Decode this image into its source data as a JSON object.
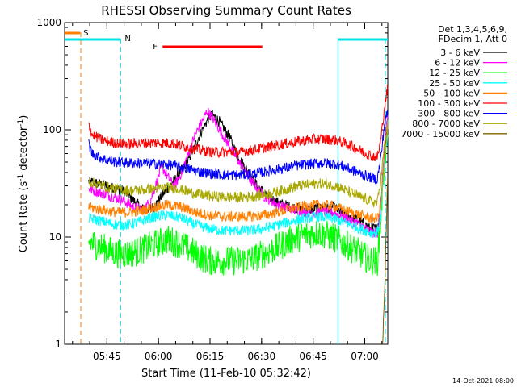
{
  "chart_data": {
    "type": "line",
    "title": "RHESSI Observing Summary Count Rates",
    "xlabel": "Start Time (11-Feb-10 05:32:42)",
    "ylabel_main": "Count Rate (s",
    "ylabel_sup1": "-1",
    "ylabel_mid": " detector",
    "ylabel_sup2": "-1",
    "ylabel_end": ")",
    "yscale": "log",
    "ylim": [
      1,
      1000
    ],
    "xlim_minutes": [
      0,
      94
    ],
    "x_ticks": [
      {
        "label": "05:45",
        "min": 12.3
      },
      {
        "label": "06:00",
        "min": 27.3
      },
      {
        "label": "06:15",
        "min": 42.3
      },
      {
        "label": "06:30",
        "min": 57.3
      },
      {
        "label": "06:45",
        "min": 72.3
      },
      {
        "label": "07:00",
        "min": 87.3
      }
    ],
    "y_ticks": [
      {
        "label": "1",
        "value": 1
      },
      {
        "label": "10",
        "value": 10
      },
      {
        "label": "100",
        "value": 100
      },
      {
        "label": "1000",
        "value": 1000
      }
    ],
    "legend_header": [
      "Det 1,3,4,5,6,9,",
      "FDecim 1, Att 0"
    ],
    "legend_position": "right",
    "markers": {
      "S_label": "S",
      "N_label": "N",
      "F_label": "F",
      "S_color": "#ff7f00",
      "N_color": "#00e0e0",
      "F_color": "#ff0000",
      "saa_window_min": [
        0,
        4.5
      ],
      "flag_line_min": [
        28.5,
        57.5
      ],
      "night_segments_min": [
        [
          0,
          16.3
        ],
        [
          79.5,
          94
        ]
      ],
      "vlines_dashed_orange_min": [
        4.7
      ],
      "vlines_dashed_cyan_min": [
        16.3,
        93.3
      ],
      "vlines_solid_cyan_min": [
        79.5
      ]
    },
    "series": [
      {
        "name": "3 - 6 keV",
        "color": "#000000",
        "points": [
          [
            7,
            33
          ],
          [
            12,
            30
          ],
          [
            17,
            27
          ],
          [
            20,
            22
          ],
          [
            23,
            18
          ],
          [
            26,
            19
          ],
          [
            29,
            26
          ],
          [
            32,
            34
          ],
          [
            34,
            42
          ],
          [
            36,
            52
          ],
          [
            38,
            72
          ],
          [
            40,
            100
          ],
          [
            42,
            130
          ],
          [
            43,
            138
          ],
          [
            45,
            120
          ],
          [
            48,
            85
          ],
          [
            50,
            60
          ],
          [
            53,
            42
          ],
          [
            56,
            30
          ],
          [
            59,
            24
          ],
          [
            62,
            21
          ],
          [
            66,
            19
          ],
          [
            70,
            18
          ],
          [
            74,
            18.5
          ],
          [
            78,
            19
          ],
          [
            82,
            16
          ],
          [
            86,
            14
          ],
          [
            89,
            12
          ],
          [
            91,
            12
          ],
          [
            92,
            20
          ],
          [
            93,
            60
          ],
          [
            94,
            120
          ]
        ]
      },
      {
        "name": "6 - 12 keV",
        "color": "#ff00ff",
        "points": [
          [
            7,
            28
          ],
          [
            12,
            25
          ],
          [
            17,
            22
          ],
          [
            20,
            19
          ],
          [
            23,
            18
          ],
          [
            25,
            22
          ],
          [
            27,
            34
          ],
          [
            28,
            44
          ],
          [
            29,
            42
          ],
          [
            30,
            36
          ],
          [
            32,
            30
          ],
          [
            34,
            40
          ],
          [
            36,
            60
          ],
          [
            38,
            90
          ],
          [
            40,
            120
          ],
          [
            41.5,
            150
          ],
          [
            43,
            130
          ],
          [
            46,
            90
          ],
          [
            50,
            55
          ],
          [
            54,
            34
          ],
          [
            58,
            24
          ],
          [
            62,
            20
          ],
          [
            66,
            18
          ],
          [
            70,
            17
          ],
          [
            74,
            17
          ],
          [
            78,
            17
          ],
          [
            82,
            15
          ],
          [
            86,
            13
          ],
          [
            89,
            11
          ],
          [
            91,
            11
          ],
          [
            92,
            20
          ],
          [
            93,
            70
          ],
          [
            94,
            130
          ]
        ]
      },
      {
        "name": "12 - 25 keV",
        "color": "#00ff00",
        "points": [
          [
            7,
            9
          ],
          [
            11,
            8
          ],
          [
            15,
            7
          ],
          [
            19,
            7
          ],
          [
            22,
            7.5
          ],
          [
            26,
            8.5
          ],
          [
            30,
            9.5
          ],
          [
            34,
            8.5
          ],
          [
            38,
            7
          ],
          [
            42,
            6
          ],
          [
            46,
            6
          ],
          [
            50,
            6
          ],
          [
            54,
            6.2
          ],
          [
            58,
            7
          ],
          [
            62,
            8
          ],
          [
            66,
            9.5
          ],
          [
            70,
            10.5
          ],
          [
            74,
            11
          ],
          [
            78,
            10
          ],
          [
            82,
            8.5
          ],
          [
            86,
            7
          ],
          [
            89,
            6
          ],
          [
            91,
            6
          ],
          [
            92,
            15
          ],
          [
            93,
            50
          ],
          [
            94,
            90
          ]
        ]
      },
      {
        "name": "25 - 50 keV",
        "color": "#00ffff",
        "points": [
          [
            7,
            15
          ],
          [
            11,
            14
          ],
          [
            15,
            13
          ],
          [
            19,
            13
          ],
          [
            22,
            14
          ],
          [
            26,
            15.5
          ],
          [
            30,
            16
          ],
          [
            34,
            15
          ],
          [
            38,
            13
          ],
          [
            42,
            12
          ],
          [
            46,
            11.5
          ],
          [
            50,
            11.5
          ],
          [
            54,
            11.5
          ],
          [
            58,
            12
          ],
          [
            62,
            13
          ],
          [
            66,
            14
          ],
          [
            70,
            15
          ],
          [
            74,
            15.5
          ],
          [
            78,
            15
          ],
          [
            82,
            13.5
          ],
          [
            86,
            12
          ],
          [
            89,
            11
          ],
          [
            91,
            11
          ],
          [
            92,
            16
          ],
          [
            93,
            50
          ],
          [
            94,
            90
          ]
        ]
      },
      {
        "name": "50 - 100 keV",
        "color": "#ff8000",
        "points": [
          [
            7,
            19
          ],
          [
            11,
            18
          ],
          [
            15,
            17
          ],
          [
            19,
            17
          ],
          [
            22,
            17.5
          ],
          [
            26,
            19
          ],
          [
            30,
            20
          ],
          [
            34,
            19
          ],
          [
            38,
            17
          ],
          [
            42,
            16
          ],
          [
            46,
            15.5
          ],
          [
            50,
            15.5
          ],
          [
            54,
            15.5
          ],
          [
            58,
            16
          ],
          [
            62,
            17
          ],
          [
            66,
            18.5
          ],
          [
            70,
            19.5
          ],
          [
            74,
            20
          ],
          [
            78,
            19.5
          ],
          [
            82,
            17.5
          ],
          [
            86,
            16
          ],
          [
            89,
            15
          ],
          [
            91,
            15
          ],
          [
            92,
            20
          ],
          [
            93,
            55
          ],
          [
            94,
            100
          ]
        ]
      },
      {
        "name": "100 - 300 keV",
        "color": "#ff0000",
        "points": [
          [
            7,
            115
          ],
          [
            8,
            90
          ],
          [
            11,
            80
          ],
          [
            15,
            75
          ],
          [
            19,
            74
          ],
          [
            23,
            75
          ],
          [
            27,
            76
          ],
          [
            31,
            75
          ],
          [
            35,
            70
          ],
          [
            39,
            65
          ],
          [
            43,
            62
          ],
          [
            47,
            62
          ],
          [
            51,
            62
          ],
          [
            55,
            65
          ],
          [
            59,
            69
          ],
          [
            63,
            73
          ],
          [
            67,
            77
          ],
          [
            71,
            81
          ],
          [
            75,
            82
          ],
          [
            79,
            80
          ],
          [
            83,
            72
          ],
          [
            87,
            62
          ],
          [
            90,
            56
          ],
          [
            91,
            56
          ],
          [
            92,
            80
          ],
          [
            93,
            160
          ],
          [
            94,
            250
          ]
        ]
      },
      {
        "name": "300 - 800 keV",
        "color": "#0000ff",
        "points": [
          [
            7,
            75
          ],
          [
            8,
            60
          ],
          [
            11,
            54
          ],
          [
            15,
            50
          ],
          [
            19,
            49
          ],
          [
            23,
            49
          ],
          [
            27,
            48
          ],
          [
            31,
            47
          ],
          [
            35,
            44
          ],
          [
            39,
            41
          ],
          [
            43,
            39
          ],
          [
            47,
            38
          ],
          [
            51,
            38
          ],
          [
            55,
            39
          ],
          [
            59,
            41
          ],
          [
            63,
            43.5
          ],
          [
            67,
            46
          ],
          [
            71,
            48
          ],
          [
            75,
            49
          ],
          [
            79,
            48
          ],
          [
            83,
            43
          ],
          [
            87,
            38
          ],
          [
            90,
            35
          ],
          [
            91,
            35
          ],
          [
            92,
            55
          ],
          [
            93,
            110
          ],
          [
            94,
            150
          ]
        ]
      },
      {
        "name": "800 - 7000 keV",
        "color": "#a8a800",
        "points": [
          [
            7,
            33
          ],
          [
            11,
            30
          ],
          [
            15,
            28
          ],
          [
            19,
            27
          ],
          [
            23,
            27.5
          ],
          [
            27,
            28.5
          ],
          [
            31,
            29
          ],
          [
            35,
            27
          ],
          [
            39,
            25
          ],
          [
            43,
            24
          ],
          [
            47,
            23.5
          ],
          [
            51,
            23.5
          ],
          [
            55,
            24
          ],
          [
            59,
            25
          ],
          [
            63,
            27
          ],
          [
            67,
            29.5
          ],
          [
            71,
            31
          ],
          [
            75,
            31.5
          ],
          [
            79,
            30
          ],
          [
            83,
            26
          ],
          [
            87,
            23
          ],
          [
            90,
            21
          ],
          [
            91,
            21
          ],
          [
            92,
            35
          ],
          [
            93,
            70
          ],
          [
            94,
            110
          ]
        ]
      },
      {
        "name": "7000 - 15000 keV",
        "color": "#806000",
        "points": [
          [
            92.5,
            1
          ],
          [
            93,
            2.5
          ],
          [
            93.5,
            10
          ],
          [
            94,
            40
          ]
        ]
      }
    ]
  },
  "footer_date": "14-Oct-2021 08:00"
}
